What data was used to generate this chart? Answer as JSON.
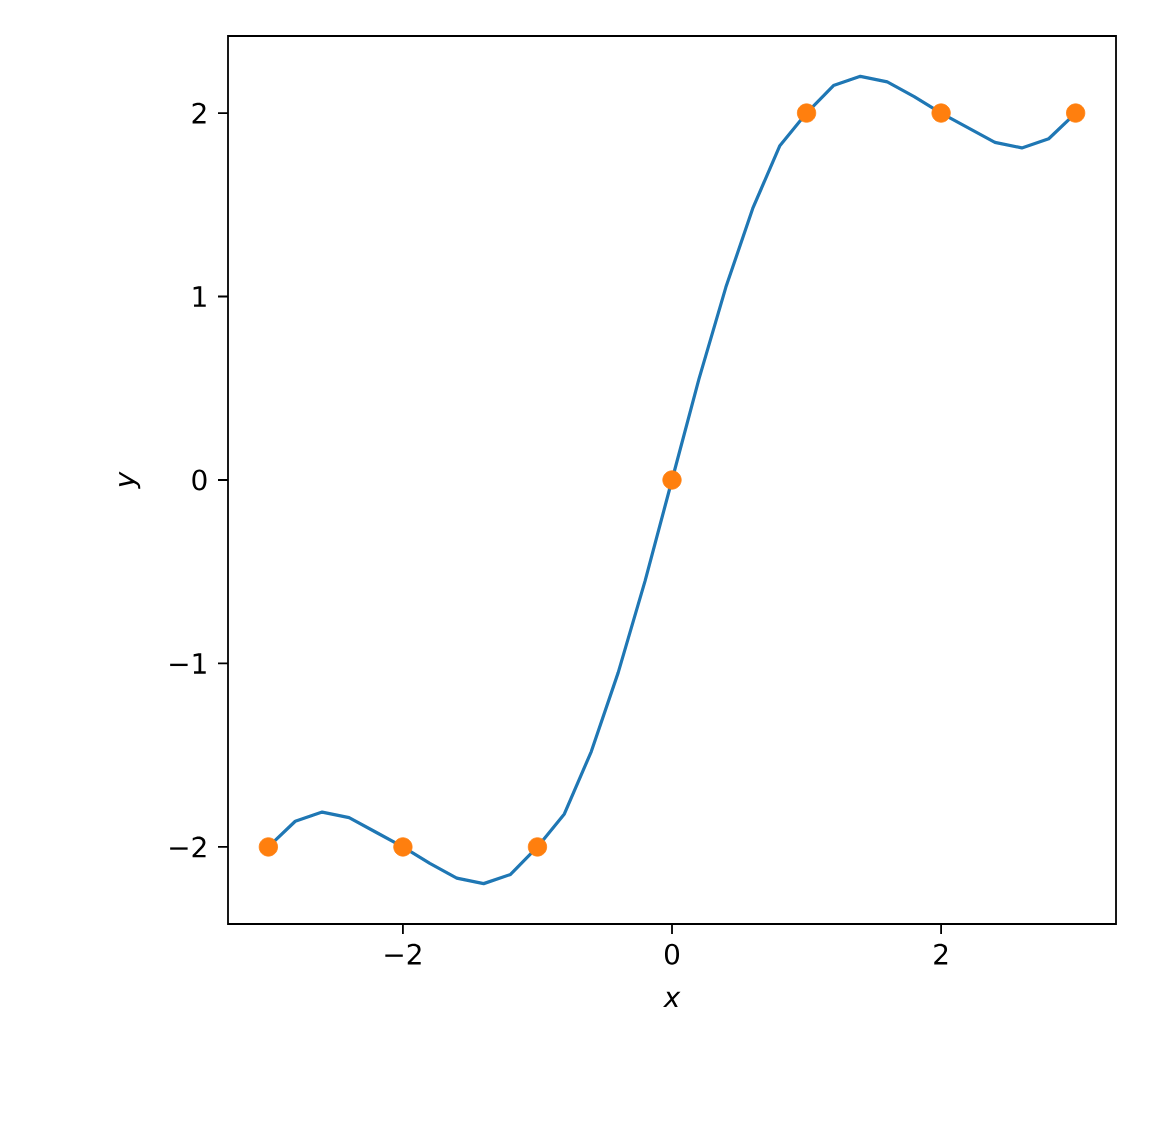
{
  "chart_data": {
    "type": "line",
    "xlabel": "x",
    "ylabel": "y",
    "xlim": [
      -3.3,
      3.3
    ],
    "ylim": [
      -2.42,
      2.42
    ],
    "xticks": [
      {
        "value": -2,
        "label": "−2"
      },
      0,
      2
    ],
    "yticks": [
      {
        "value": -2,
        "label": "−2"
      },
      {
        "value": -1,
        "label": "−1"
      },
      0,
      1,
      2
    ],
    "series": [
      {
        "color": "#1f77b4",
        "marker": "none",
        "x": [
          -3,
          -2.8,
          -2.6,
          -2.4,
          -2.2,
          -2,
          -1.8,
          -1.6,
          -1.4,
          -1.2,
          -1,
          -0.8,
          -0.6,
          -0.4,
          -0.2,
          0,
          0.2,
          0.4,
          0.6,
          0.8,
          1,
          1.2,
          1.4,
          1.6,
          1.8,
          2,
          2.2,
          2.4,
          2.6,
          2.8,
          3
        ],
        "values": [
          -2,
          -1.86,
          -1.81,
          -1.84,
          -1.92,
          -2,
          -2.09,
          -2.17,
          -2.2,
          -2.15,
          -2,
          -1.82,
          -1.48,
          -1.05,
          -0.55,
          0,
          0.55,
          1.05,
          1.48,
          1.82,
          2,
          2.15,
          2.2,
          2.17,
          2.09,
          2,
          1.92,
          1.84,
          1.81,
          1.86,
          2
        ]
      },
      {
        "type": "scatter",
        "color": "#ff7f0e",
        "marker": "circle",
        "x": [
          -3,
          -2,
          -1,
          0,
          1,
          2,
          3
        ],
        "values": [
          -2,
          -2,
          -2,
          0,
          2,
          2,
          2
        ]
      }
    ]
  }
}
